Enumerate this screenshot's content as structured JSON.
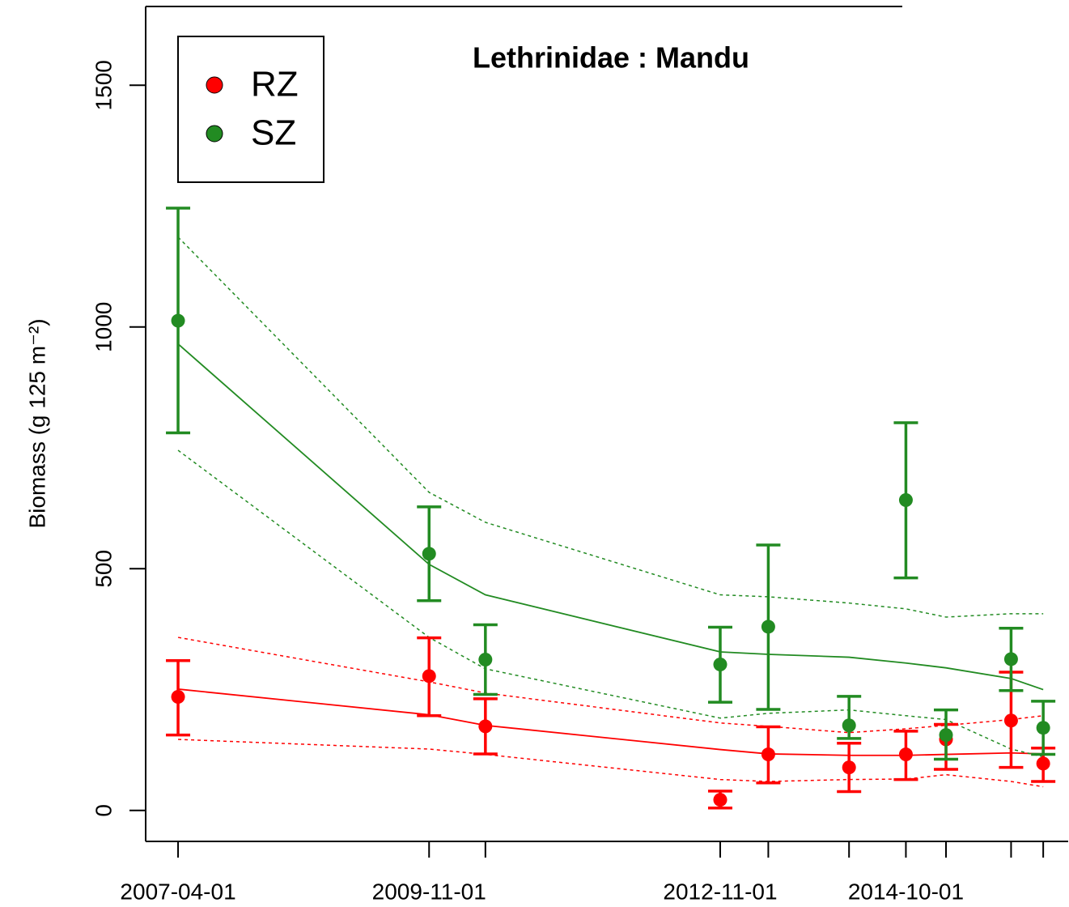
{
  "chart_data": {
    "type": "scatter",
    "title": "Lethrinidae : Mandu",
    "y_label": "Biomass (g 125 m⁻²)",
    "x": [
      "2007-04-01",
      "2009-11-01",
      "2010-06-01",
      "2012-11-01",
      "2013-05-01",
      "2014-03-01",
      "2014-10-01",
      "2015-03-01",
      "2015-11-01",
      "2016-03-01"
    ],
    "series": [
      {
        "name": "RZ",
        "color": "#ff0000",
        "values": [
          235,
          278,
          174,
          22,
          116,
          89,
          116,
          147,
          186,
          97
        ],
        "upper": [
          310,
          357,
          231,
          40,
          173,
          139,
          164,
          178,
          286,
          129
        ],
        "lower": [
          156,
          196,
          117,
          5,
          57,
          39,
          64,
          85,
          89,
          60
        ]
      },
      {
        "name": "SZ",
        "color": "#228b22",
        "values": [
          1013,
          531,
          312,
          302,
          380,
          176,
          642,
          156,
          313,
          171
        ],
        "upper": [
          1246,
          628,
          384,
          379,
          549,
          236,
          802,
          208,
          377,
          226
        ],
        "lower": [
          781,
          434,
          240,
          224,
          209,
          149,
          481,
          106,
          248,
          116
        ]
      }
    ],
    "fits": [
      {
        "color": "#ff0000",
        "dashed": false,
        "values": [
          251,
          198,
          176,
          126,
          117,
          114,
          114,
          116,
          119,
          117
        ]
      },
      {
        "color": "#ff0000",
        "dashed": true,
        "values": [
          358,
          266,
          243,
          181,
          174,
          161,
          169,
          176,
          188,
          196
        ]
      },
      {
        "color": "#ff0000",
        "dashed": true,
        "values": [
          147,
          127,
          116,
          64,
          60,
          64,
          65,
          74,
          60,
          49
        ]
      },
      {
        "color": "#228b22",
        "dashed": false,
        "values": [
          965,
          509,
          446,
          328,
          323,
          317,
          305,
          295,
          273,
          250
        ]
      },
      {
        "color": "#228b22",
        "dashed": true,
        "values": [
          1186,
          658,
          596,
          446,
          442,
          429,
          417,
          400,
          407,
          407
        ]
      },
      {
        "color": "#228b22",
        "dashed": true,
        "values": [
          745,
          358,
          293,
          191,
          201,
          208,
          196,
          188,
          127,
          111
        ]
      }
    ],
    "xlim": [
      "2006-11-30",
      "2016-06-03"
    ],
    "xticks": [
      "2007-04-01",
      "2009-11-01",
      {
        "value": "2010-06-01",
        "label": null
      },
      "2012-11-01",
      {
        "value": "2013-05-01",
        "label": null
      },
      {
        "value": "2014-03-01",
        "label": null
      },
      "2014-10-01",
      {
        "value": "2015-03-01",
        "label": null
      },
      {
        "value": "2015-11-01",
        "label": null
      },
      {
        "value": "2016-03-01",
        "label": null
      }
    ],
    "ylim": [
      -64,
      1663
    ],
    "yticks": [
      0,
      500,
      1000,
      1500
    ],
    "legend": "top-left"
  }
}
